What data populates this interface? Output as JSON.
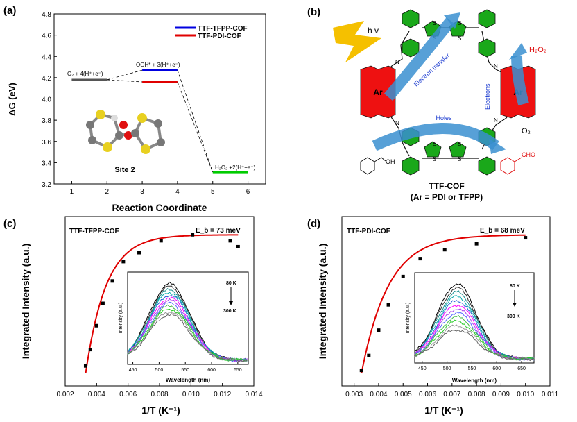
{
  "panels": {
    "a": {
      "label": "(a)"
    },
    "b": {
      "label": "(b)"
    },
    "c": {
      "label": "(c)"
    },
    "d": {
      "label": "(d)"
    }
  },
  "chart_data": [
    {
      "id": "a",
      "type": "line",
      "xlabel": "Reaction Coordinate",
      "ylabel": "ΔG (eV)",
      "xlim": [
        0.5,
        6.5
      ],
      "ylim": [
        3.2,
        4.8
      ],
      "xticks": [
        1,
        2,
        3,
        4,
        5,
        6
      ],
      "yticks": [
        3.2,
        3.4,
        3.6,
        3.8,
        4.0,
        4.2,
        4.4,
        4.6,
        4.8
      ],
      "legend": [
        {
          "name": "TTF-TFPP-COF",
          "color": "#0000e0"
        },
        {
          "name": "TTF-PDI-COF",
          "color": "#e00000"
        }
      ],
      "levels": [
        {
          "x": [
            1,
            2
          ],
          "y": 4.18,
          "color": "#555555"
        },
        {
          "x": [
            3,
            4
          ],
          "y": 4.27,
          "color": "#0000e0"
        },
        {
          "x": [
            3,
            4
          ],
          "y": 4.16,
          "color": "#e00000"
        },
        {
          "x": [
            5,
            6
          ],
          "y": 3.31,
          "color": "#00cc00"
        }
      ],
      "level_labels": {
        "o2": "O₂ + 4(H⁺+e⁻)",
        "ooh": "OOH* + 3(H⁺+e⁻)",
        "h2o2": "H₂O₂ +2(H⁺+e⁻)"
      },
      "inset_label": "Site 2"
    },
    {
      "id": "c",
      "type": "scatter",
      "title": "TTF-TFPP-COF",
      "title_color": "#1a1ad0",
      "annotation": "E_b = 73 meV",
      "xlabel": "1/T (K⁻¹)",
      "ylabel": "Integrated Intensity (a.u.)",
      "xlim": [
        0.002,
        0.014
      ],
      "xticks": [
        "0.002",
        "0.004",
        "0.006",
        "0.008",
        "0.010",
        "0.012",
        "0.014"
      ],
      "ylim": [
        0,
        1
      ],
      "points": {
        "x": [
          0.0033,
          0.0036,
          0.004,
          0.0044,
          0.005,
          0.0057,
          0.0067,
          0.0081,
          0.0101,
          0.0125,
          0.013
        ],
        "y": [
          0.1,
          0.21,
          0.37,
          0.52,
          0.67,
          0.8,
          0.86,
          0.94,
          0.98,
          0.94,
          0.9
        ]
      },
      "fit_color": "#e00000",
      "inset": {
        "xlabel": "Wavelength (nm)",
        "ylabel": "Intensity (a.u.)",
        "xticks": [
          450,
          500,
          550,
          600,
          650
        ],
        "xlim": [
          440,
          670
        ],
        "arrow_top": "80 K",
        "arrow_bottom": "300 K"
      }
    },
    {
      "id": "d",
      "type": "scatter",
      "title": "TTF-PDI-COF",
      "title_color": "#e00000",
      "annotation": "E_b = 68 meV",
      "xlabel": "1/T (K⁻¹)",
      "ylabel": "Integrated Intensity (a.u.)",
      "xlim": [
        0.0025,
        0.011
      ],
      "xticks": [
        "0.003",
        "0.004",
        "0.005",
        "0.006",
        "0.007",
        "0.008",
        "0.009",
        "0.010",
        "0.011"
      ],
      "ylim": [
        0,
        1
      ],
      "points": {
        "x": [
          0.0033,
          0.0036,
          0.004,
          0.0044,
          0.005,
          0.0057,
          0.0067,
          0.008,
          0.01
        ],
        "y": [
          0.07,
          0.17,
          0.34,
          0.51,
          0.7,
          0.82,
          0.88,
          0.92,
          0.96
        ]
      },
      "fit_color": "#e00000",
      "inset": {
        "xlabel": "Wavelength (nm)",
        "ylabel": "Intensity (a.u.)",
        "xticks": [
          450,
          500,
          550,
          600,
          650
        ],
        "xlim": [
          435,
          675
        ],
        "arrow_top": "80 K",
        "arrow_bottom": "300 K"
      }
    }
  ],
  "scheme": {
    "hv": "h v",
    "electron_transfer": "Electron transfer",
    "electrons": "Electrons",
    "holes": "Holes",
    "h2o2": "H₂O₂",
    "o2": "O₂",
    "ar": "Ar",
    "cho": "CHO",
    "oh": "OH",
    "s": "S",
    "n": "N",
    "caption1": "TTF-COF",
    "caption2": "(Ar = PDI or TFPP)"
  }
}
